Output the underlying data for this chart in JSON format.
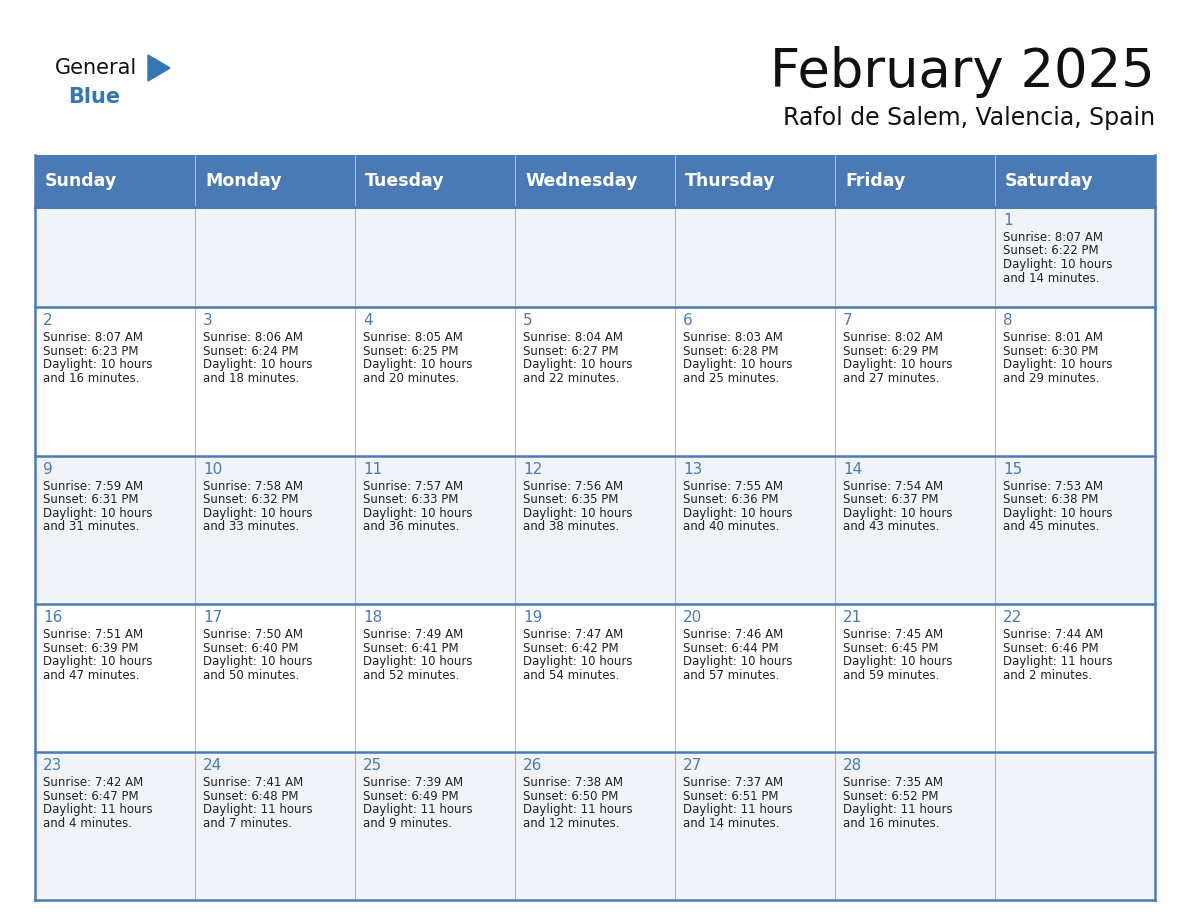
{
  "title": "February 2025",
  "subtitle": "Rafol de Salem, Valencia, Spain",
  "header_color": "#4a7ab5",
  "header_text_color": "#ffffff",
  "cell_bg_even": "#f0f4f8",
  "cell_bg_odd": "#ffffff",
  "border_color": "#4a7ab5",
  "thin_border": "#b0b8c8",
  "days_of_week": [
    "Sunday",
    "Monday",
    "Tuesday",
    "Wednesday",
    "Thursday",
    "Friday",
    "Saturday"
  ],
  "title_fontsize": 38,
  "subtitle_fontsize": 17,
  "header_fontsize": 12.5,
  "day_num_fontsize": 11,
  "cell_fontsize": 8.5,
  "day_num_color": "#4a7ab5",
  "cell_text_color": "#222222",
  "logo_color1": "#111111",
  "logo_color2": "#3375b5",
  "logo_triangle_color": "#3375b5",
  "calendar_data": [
    [
      null,
      null,
      null,
      null,
      null,
      null,
      {
        "day": 1,
        "sunrise": "8:07 AM",
        "sunset": "6:22 PM",
        "daylight": "10 hours",
        "daylight2": "and 14 minutes."
      }
    ],
    [
      {
        "day": 2,
        "sunrise": "8:07 AM",
        "sunset": "6:23 PM",
        "daylight": "10 hours",
        "daylight2": "and 16 minutes."
      },
      {
        "day": 3,
        "sunrise": "8:06 AM",
        "sunset": "6:24 PM",
        "daylight": "10 hours",
        "daylight2": "and 18 minutes."
      },
      {
        "day": 4,
        "sunrise": "8:05 AM",
        "sunset": "6:25 PM",
        "daylight": "10 hours",
        "daylight2": "and 20 minutes."
      },
      {
        "day": 5,
        "sunrise": "8:04 AM",
        "sunset": "6:27 PM",
        "daylight": "10 hours",
        "daylight2": "and 22 minutes."
      },
      {
        "day": 6,
        "sunrise": "8:03 AM",
        "sunset": "6:28 PM",
        "daylight": "10 hours",
        "daylight2": "and 25 minutes."
      },
      {
        "day": 7,
        "sunrise": "8:02 AM",
        "sunset": "6:29 PM",
        "daylight": "10 hours",
        "daylight2": "and 27 minutes."
      },
      {
        "day": 8,
        "sunrise": "8:01 AM",
        "sunset": "6:30 PM",
        "daylight": "10 hours",
        "daylight2": "and 29 minutes."
      }
    ],
    [
      {
        "day": 9,
        "sunrise": "7:59 AM",
        "sunset": "6:31 PM",
        "daylight": "10 hours",
        "daylight2": "and 31 minutes."
      },
      {
        "day": 10,
        "sunrise": "7:58 AM",
        "sunset": "6:32 PM",
        "daylight": "10 hours",
        "daylight2": "and 33 minutes."
      },
      {
        "day": 11,
        "sunrise": "7:57 AM",
        "sunset": "6:33 PM",
        "daylight": "10 hours",
        "daylight2": "and 36 minutes."
      },
      {
        "day": 12,
        "sunrise": "7:56 AM",
        "sunset": "6:35 PM",
        "daylight": "10 hours",
        "daylight2": "and 38 minutes."
      },
      {
        "day": 13,
        "sunrise": "7:55 AM",
        "sunset": "6:36 PM",
        "daylight": "10 hours",
        "daylight2": "and 40 minutes."
      },
      {
        "day": 14,
        "sunrise": "7:54 AM",
        "sunset": "6:37 PM",
        "daylight": "10 hours",
        "daylight2": "and 43 minutes."
      },
      {
        "day": 15,
        "sunrise": "7:53 AM",
        "sunset": "6:38 PM",
        "daylight": "10 hours",
        "daylight2": "and 45 minutes."
      }
    ],
    [
      {
        "day": 16,
        "sunrise": "7:51 AM",
        "sunset": "6:39 PM",
        "daylight": "10 hours",
        "daylight2": "and 47 minutes."
      },
      {
        "day": 17,
        "sunrise": "7:50 AM",
        "sunset": "6:40 PM",
        "daylight": "10 hours",
        "daylight2": "and 50 minutes."
      },
      {
        "day": 18,
        "sunrise": "7:49 AM",
        "sunset": "6:41 PM",
        "daylight": "10 hours",
        "daylight2": "and 52 minutes."
      },
      {
        "day": 19,
        "sunrise": "7:47 AM",
        "sunset": "6:42 PM",
        "daylight": "10 hours",
        "daylight2": "and 54 minutes."
      },
      {
        "day": 20,
        "sunrise": "7:46 AM",
        "sunset": "6:44 PM",
        "daylight": "10 hours",
        "daylight2": "and 57 minutes."
      },
      {
        "day": 21,
        "sunrise": "7:45 AM",
        "sunset": "6:45 PM",
        "daylight": "10 hours",
        "daylight2": "and 59 minutes."
      },
      {
        "day": 22,
        "sunrise": "7:44 AM",
        "sunset": "6:46 PM",
        "daylight": "11 hours",
        "daylight2": "and 2 minutes."
      }
    ],
    [
      {
        "day": 23,
        "sunrise": "7:42 AM",
        "sunset": "6:47 PM",
        "daylight": "11 hours",
        "daylight2": "and 4 minutes."
      },
      {
        "day": 24,
        "sunrise": "7:41 AM",
        "sunset": "6:48 PM",
        "daylight": "11 hours",
        "daylight2": "and 7 minutes."
      },
      {
        "day": 25,
        "sunrise": "7:39 AM",
        "sunset": "6:49 PM",
        "daylight": "11 hours",
        "daylight2": "and 9 minutes."
      },
      {
        "day": 26,
        "sunrise": "7:38 AM",
        "sunset": "6:50 PM",
        "daylight": "11 hours",
        "daylight2": "and 12 minutes."
      },
      {
        "day": 27,
        "sunrise": "7:37 AM",
        "sunset": "6:51 PM",
        "daylight": "11 hours",
        "daylight2": "and 14 minutes."
      },
      {
        "day": 28,
        "sunrise": "7:35 AM",
        "sunset": "6:52 PM",
        "daylight": "11 hours",
        "daylight2": "and 16 minutes."
      },
      null
    ]
  ]
}
